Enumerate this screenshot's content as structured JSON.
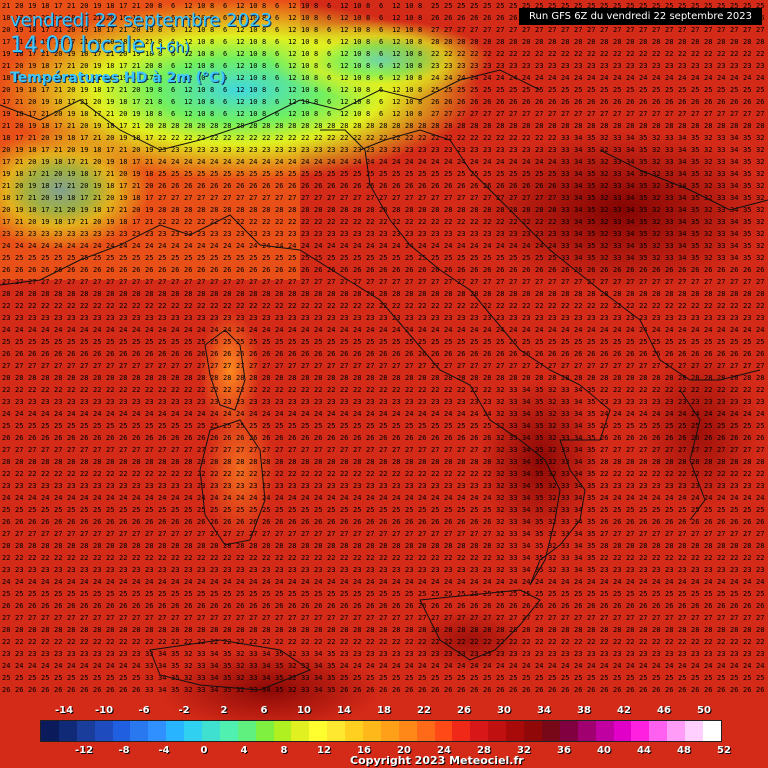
{
  "header": {
    "date": "vendredi 22 septembre 2023",
    "hour": "14:00 locale",
    "offset": "(+6h)",
    "variable": "Températures HD à 2m (°C)"
  },
  "run_label": "Run GFS 6Z du vendredi 22 septembre 2023",
  "copyright": "Copyright 2023 Meteociel.fr",
  "scale": {
    "top_labels": [
      "-14",
      "-10",
      "-6",
      "-2",
      "2",
      "6",
      "10",
      "14",
      "18",
      "22",
      "26",
      "30",
      "34",
      "38",
      "42",
      "46",
      "50"
    ],
    "bottom_labels": [
      "-12",
      "-8",
      "-4",
      "0",
      "4",
      "8",
      "12",
      "16",
      "20",
      "24",
      "28",
      "32",
      "36",
      "40",
      "44",
      "48",
      "52"
    ],
    "colors": [
      "#0a1a5a",
      "#102a78",
      "#1a3c9a",
      "#1e4cbe",
      "#2060e0",
      "#2a78f0",
      "#3090ff",
      "#28b4ff",
      "#30d0f0",
      "#40e0d0",
      "#50f0b0",
      "#60f080",
      "#80f040",
      "#b0f020",
      "#e0f020",
      "#ffff30",
      "#ffe830",
      "#ffd020",
      "#ffb81a",
      "#ffa018",
      "#ff8818",
      "#ff6a18",
      "#ff4a18",
      "#f02818",
      "#d81818",
      "#c01010",
      "#a80a0a",
      "#900808",
      "#780818",
      "#800040",
      "#a00070",
      "#c000a0",
      "#e000c8",
      "#ff20e0",
      "#ff60f0",
      "#ff9cf8",
      "#ffd0ff",
      "#ffffff"
    ]
  },
  "map": {
    "temperature_samples": [
      "22",
      "23",
      "24",
      "25",
      "26",
      "27",
      "28",
      "32",
      "33",
      "34",
      "35",
      "17",
      "18",
      "19",
      "20",
      "21",
      "12",
      "10",
      "8",
      "6"
    ]
  }
}
